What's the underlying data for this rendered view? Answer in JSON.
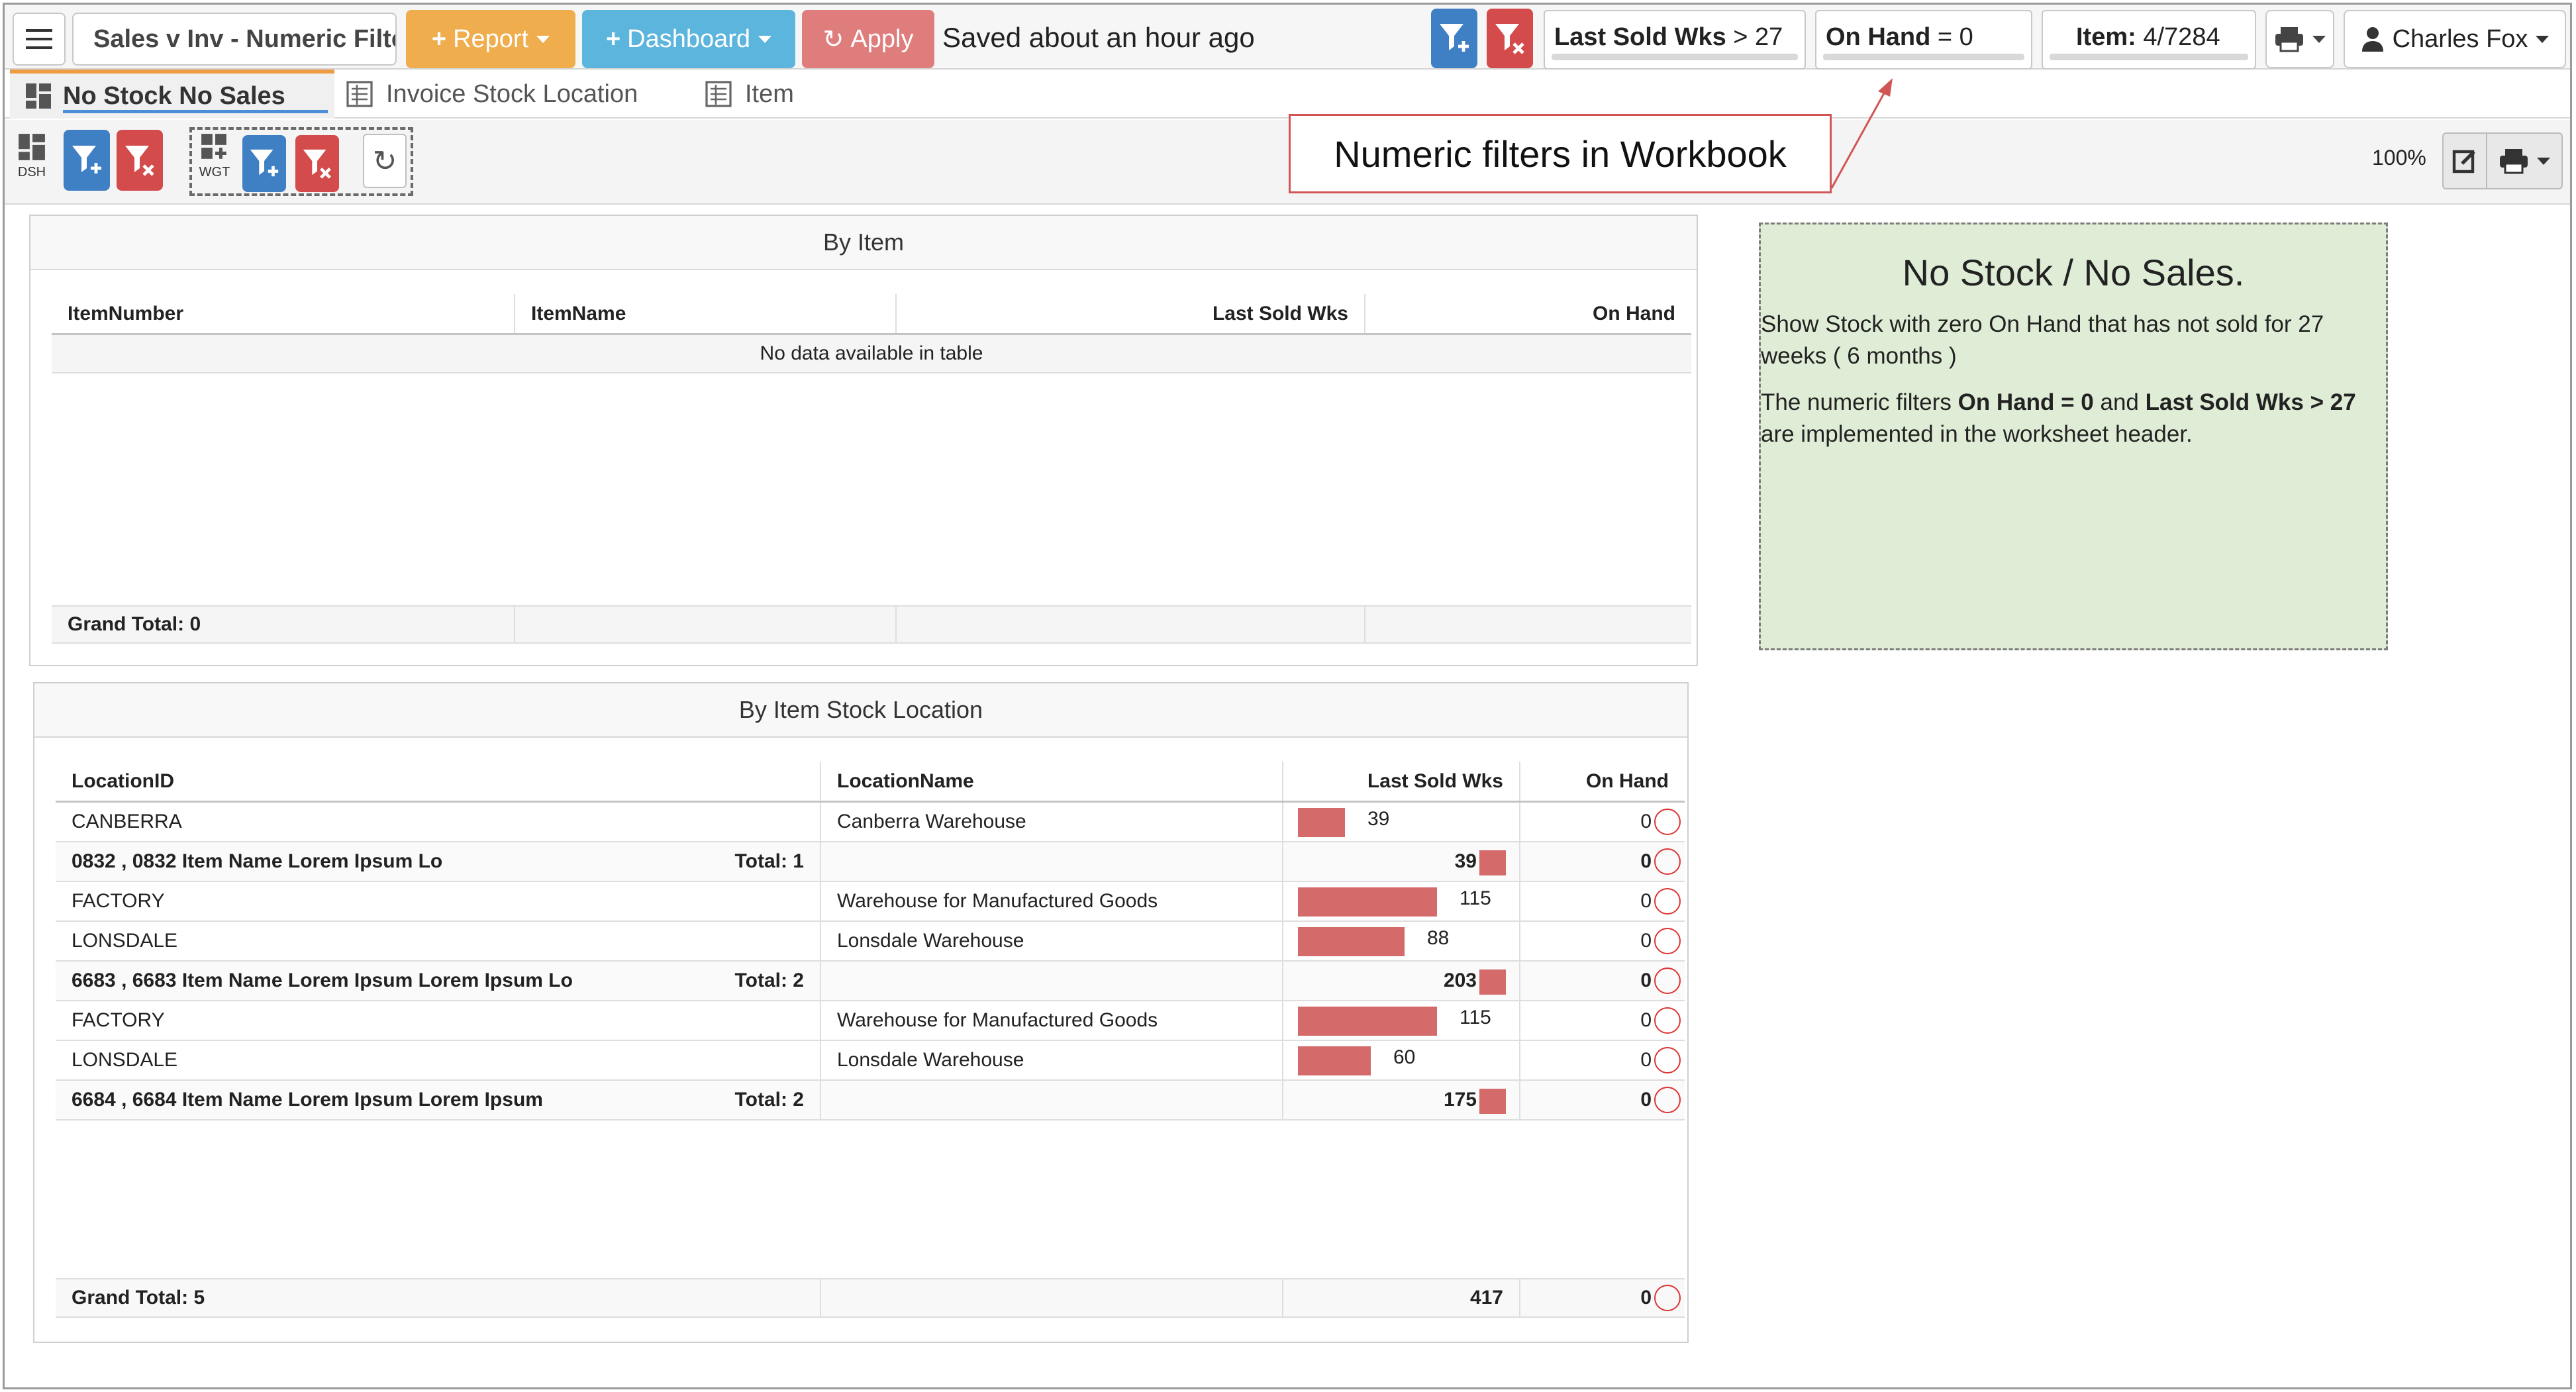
{
  "toolbar": {
    "workbook_title": "Sales v Inv - Numeric Filte",
    "report_label": "Report",
    "dashboard_label": "Dashboard",
    "apply_label": "Apply",
    "saved_status": "Saved about an hour ago",
    "user_name": "Charles Fox"
  },
  "filters": [
    {
      "name": "Last Sold Wks",
      "op": "> 27"
    },
    {
      "name": "On Hand",
      "op": "= 0"
    },
    {
      "name": "Item:",
      "op": "4/7284"
    }
  ],
  "tabs": [
    "No Stock No Sales",
    "Invoice Stock Location",
    "Item"
  ],
  "toolbar2": {
    "dsh_label": "DSH",
    "wgt_label": "WGT",
    "zoom": "100%"
  },
  "callout": "Numeric filters in Workbook",
  "by_item": {
    "title": "By Item",
    "columns": [
      "ItemNumber",
      "ItemName",
      "Last Sold Wks",
      "On Hand"
    ],
    "empty_text": "No data available in table",
    "grand_total": "Grand Total: 0"
  },
  "by_location": {
    "title": "By Item Stock Location",
    "columns": [
      "LocationID",
      "LocationName",
      "Last Sold Wks",
      "On Hand"
    ],
    "bar_max": 115,
    "rows": [
      {
        "id": "CANBERRA",
        "name": "Canberra Warehouse",
        "wks": "39",
        "wks_value": 39,
        "onhand": "0",
        "group": false
      },
      {
        "id": "0832 , 0832 Item Name Lorem Ipsum Lo",
        "total": "Total: 1",
        "name": "",
        "wks": "39",
        "wks_value": 39,
        "onhand": "0",
        "group": true
      },
      {
        "id": "FACTORY",
        "name": "Warehouse for Manufactured Goods",
        "wks": "115",
        "wks_value": 115,
        "onhand": "0",
        "group": false
      },
      {
        "id": "LONSDALE",
        "name": "Lonsdale Warehouse",
        "wks": "88",
        "wks_value": 88,
        "onhand": "0",
        "group": false
      },
      {
        "id": "6683 , 6683 Item Name Lorem Ipsum Lorem Ipsum Lo",
        "total": "Total: 2",
        "name": "",
        "wks": "203",
        "wks_value": 203,
        "onhand": "0",
        "group": true
      },
      {
        "id": "FACTORY",
        "name": "Warehouse for Manufactured Goods",
        "wks": "115",
        "wks_value": 115,
        "onhand": "0",
        "group": false
      },
      {
        "id": "LONSDALE",
        "name": "Lonsdale Warehouse",
        "wks": "60",
        "wks_value": 60,
        "onhand": "0",
        "group": false
      },
      {
        "id": "6684 , 6684 Item Name Lorem Ipsum Lorem Ipsum",
        "total": "Total: 2",
        "name": "",
        "wks": "175",
        "wks_value": 175,
        "onhand": "0",
        "group": true
      }
    ],
    "grand_total": "Grand Total: 5",
    "grand_wks": "417",
    "grand_onhand": "0"
  },
  "note": {
    "title": "No  Stock / No Sales.",
    "line1": "Show Stock with zero On Hand that has not sold for 27 weeks ( 6 months )",
    "line2_pre": "The numeric filters ",
    "line2_b1": "On Hand = 0",
    "line2_mid": "  and ",
    "line2_b2": "Last Sold Wks > 27",
    "line2_post": " are implemented in the worksheet header."
  }
}
